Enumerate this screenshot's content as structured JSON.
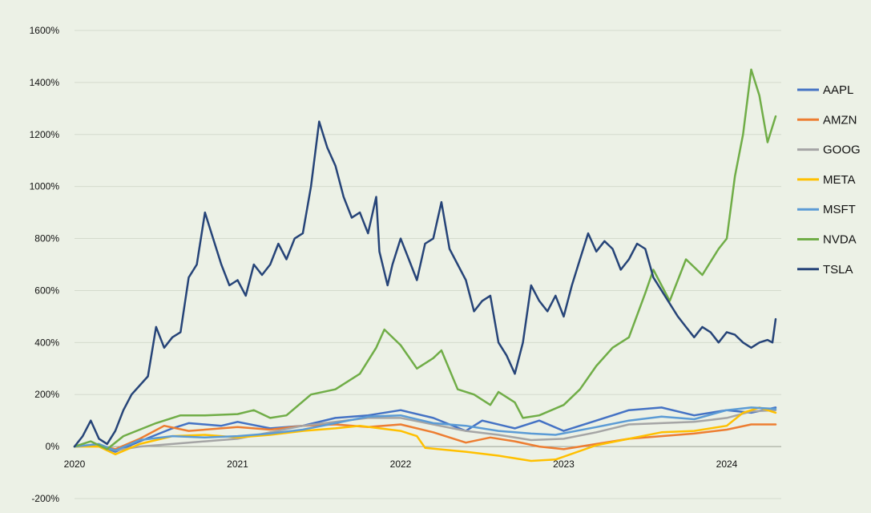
{
  "chart_data": {
    "type": "line",
    "title": "",
    "xlabel": "",
    "ylabel": "",
    "xlim": [
      2020.0,
      2024.35
    ],
    "ylim": [
      -200,
      1600
    ],
    "y_ticks": [
      -200,
      0,
      200,
      400,
      600,
      800,
      1000,
      1200,
      1400,
      1600
    ],
    "y_tick_labels": [
      "-200%",
      "0%",
      "200%",
      "400%",
      "600%",
      "800%",
      "1000%",
      "1200%",
      "1400%",
      "1600%"
    ],
    "x_ticks": [
      2020,
      2021,
      2022,
      2023,
      2024
    ],
    "x_tick_labels": [
      "2020",
      "2021",
      "2022",
      "2023",
      "2024"
    ],
    "grid": "horizontal",
    "legend_position": "right",
    "series": [
      {
        "name": "AAPL",
        "color": "#4472c4",
        "x": [
          2020.0,
          2020.15,
          2020.25,
          2020.4,
          2020.6,
          2020.7,
          2020.9,
          2021.0,
          2021.2,
          2021.4,
          2021.6,
          2021.8,
          2022.0,
          2022.2,
          2022.4,
          2022.5,
          2022.7,
          2022.85,
          2023.0,
          2023.2,
          2023.4,
          2023.6,
          2023.8,
          2024.0,
          2024.15,
          2024.3
        ],
        "y": [
          0,
          5,
          -20,
          20,
          70,
          90,
          80,
          95,
          70,
          80,
          110,
          120,
          140,
          110,
          60,
          100,
          70,
          100,
          60,
          100,
          140,
          150,
          120,
          140,
          130,
          150
        ]
      },
      {
        "name": "AMZN",
        "color": "#ed7d31",
        "x": [
          2020.0,
          2020.15,
          2020.25,
          2020.4,
          2020.55,
          2020.7,
          2020.9,
          2021.0,
          2021.2,
          2021.4,
          2021.6,
          2021.8,
          2022.0,
          2022.2,
          2022.4,
          2022.55,
          2022.7,
          2022.85,
          2023.0,
          2023.2,
          2023.4,
          2023.6,
          2023.8,
          2024.0,
          2024.15,
          2024.3
        ],
        "y": [
          0,
          5,
          -10,
          30,
          80,
          60,
          70,
          75,
          65,
          80,
          85,
          75,
          85,
          55,
          15,
          35,
          20,
          0,
          -10,
          10,
          30,
          40,
          50,
          65,
          85,
          85
        ]
      },
      {
        "name": "GOOG",
        "color": "#a5a5a5",
        "x": [
          2020.0,
          2020.15,
          2020.25,
          2020.4,
          2020.6,
          2020.8,
          2021.0,
          2021.2,
          2021.4,
          2021.6,
          2021.8,
          2022.0,
          2022.2,
          2022.4,
          2022.6,
          2022.8,
          2023.0,
          2023.2,
          2023.4,
          2023.6,
          2023.8,
          2024.0,
          2024.15,
          2024.3
        ],
        "y": [
          0,
          5,
          -15,
          0,
          10,
          20,
          30,
          55,
          80,
          95,
          110,
          110,
          85,
          60,
          45,
          25,
          30,
          55,
          85,
          90,
          95,
          110,
          135,
          140
        ]
      },
      {
        "name": "META",
        "color": "#ffc000",
        "x": [
          2020.0,
          2020.15,
          2020.25,
          2020.4,
          2020.6,
          2020.8,
          2021.0,
          2021.2,
          2021.4,
          2021.6,
          2021.75,
          2022.0,
          2022.1,
          2022.15,
          2022.4,
          2022.6,
          2022.8,
          2022.95,
          2023.2,
          2023.4,
          2023.6,
          2023.8,
          2024.0,
          2024.1,
          2024.2,
          2024.3
        ],
        "y": [
          0,
          0,
          -30,
          10,
          40,
          45,
          35,
          45,
          60,
          70,
          80,
          60,
          40,
          -5,
          -20,
          -35,
          -55,
          -50,
          5,
          30,
          55,
          60,
          80,
          130,
          150,
          130
        ]
      },
      {
        "name": "MSFT",
        "color": "#5b9bd5",
        "x": [
          2020.0,
          2020.15,
          2020.25,
          2020.4,
          2020.6,
          2020.8,
          2021.0,
          2021.2,
          2021.4,
          2021.6,
          2021.8,
          2022.0,
          2022.2,
          2022.4,
          2022.6,
          2022.8,
          2022.95,
          2023.2,
          2023.4,
          2023.6,
          2023.8,
          2024.0,
          2024.15,
          2024.3
        ],
        "y": [
          0,
          10,
          -15,
          25,
          40,
          35,
          40,
          50,
          65,
          90,
          115,
          120,
          90,
          80,
          60,
          50,
          45,
          75,
          100,
          115,
          105,
          140,
          150,
          145
        ]
      },
      {
        "name": "NVDA",
        "color": "#70ad47",
        "x": [
          2020.0,
          2020.1,
          2020.2,
          2020.3,
          2020.5,
          2020.65,
          2020.8,
          2021.0,
          2021.1,
          2021.2,
          2021.3,
          2021.45,
          2021.6,
          2021.75,
          2021.85,
          2021.9,
          2022.0,
          2022.1,
          2022.2,
          2022.25,
          2022.35,
          2022.45,
          2022.55,
          2022.6,
          2022.7,
          2022.75,
          2022.85,
          2023.0,
          2023.1,
          2023.2,
          2023.3,
          2023.4,
          2023.5,
          2023.55,
          2023.65,
          2023.75,
          2023.85,
          2023.95,
          2024.0,
          2024.05,
          2024.1,
          2024.15,
          2024.2,
          2024.25,
          2024.3
        ],
        "y": [
          0,
          20,
          -10,
          40,
          90,
          120,
          120,
          125,
          140,
          110,
          120,
          200,
          220,
          280,
          380,
          450,
          390,
          300,
          340,
          370,
          220,
          200,
          160,
          210,
          170,
          110,
          120,
          160,
          220,
          310,
          380,
          420,
          590,
          680,
          560,
          720,
          660,
          760,
          800,
          1040,
          1200,
          1450,
          1350,
          1170,
          1270
        ]
      },
      {
        "name": "TSLA",
        "color": "#264478",
        "x": [
          2020.0,
          2020.05,
          2020.1,
          2020.15,
          2020.2,
          2020.25,
          2020.3,
          2020.35,
          2020.45,
          2020.5,
          2020.55,
          2020.6,
          2020.65,
          2020.7,
          2020.75,
          2020.8,
          2020.85,
          2020.9,
          2020.95,
          2021.0,
          2021.05,
          2021.1,
          2021.15,
          2021.2,
          2021.25,
          2021.3,
          2021.35,
          2021.4,
          2021.45,
          2021.5,
          2021.55,
          2021.6,
          2021.65,
          2021.7,
          2021.75,
          2021.8,
          2021.85,
          2021.87,
          2021.92,
          2021.95,
          2022.0,
          2022.05,
          2022.1,
          2022.15,
          2022.2,
          2022.25,
          2022.3,
          2022.35,
          2022.4,
          2022.45,
          2022.5,
          2022.55,
          2022.6,
          2022.65,
          2022.7,
          2022.75,
          2022.8,
          2022.85,
          2022.9,
          2022.95,
          2023.0,
          2023.05,
          2023.1,
          2023.15,
          2023.2,
          2023.25,
          2023.3,
          2023.35,
          2023.4,
          2023.45,
          2023.5,
          2023.55,
          2023.6,
          2023.65,
          2023.7,
          2023.75,
          2023.8,
          2023.85,
          2023.9,
          2023.95,
          2024.0,
          2024.05,
          2024.1,
          2024.15,
          2024.2,
          2024.25,
          2024.28,
          2024.3
        ],
        "y": [
          0,
          40,
          100,
          30,
          10,
          60,
          140,
          200,
          270,
          460,
          380,
          420,
          440,
          650,
          700,
          900,
          800,
          700,
          620,
          640,
          580,
          700,
          660,
          700,
          780,
          720,
          800,
          820,
          1000,
          1250,
          1150,
          1080,
          960,
          880,
          900,
          820,
          960,
          750,
          620,
          700,
          800,
          720,
          640,
          780,
          800,
          940,
          760,
          700,
          640,
          520,
          560,
          580,
          400,
          350,
          280,
          400,
          620,
          560,
          520,
          580,
          500,
          620,
          720,
          820,
          750,
          790,
          760,
          680,
          720,
          780,
          760,
          650,
          600,
          550,
          500,
          460,
          420,
          460,
          440,
          400,
          440,
          430,
          400,
          380,
          400,
          410,
          400,
          490
        ]
      }
    ]
  }
}
